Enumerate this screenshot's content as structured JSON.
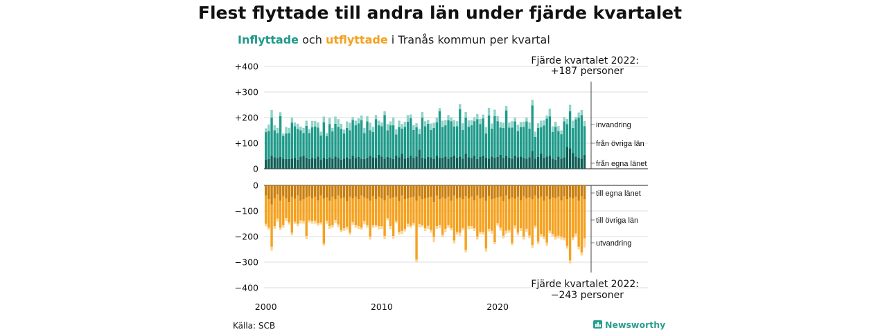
{
  "title": "Flest flyttade till andra län under fjärde kvartalet",
  "subtitle": {
    "part1": "Inflyttade",
    "part2": " och ",
    "part3": "utflyttade",
    "part4": " i Tranås kommun per kvartal"
  },
  "source": "Källa: SCB",
  "brand": "Newsworthy",
  "colors": {
    "in_own": "#0f5e55",
    "in_other": "#1f9a8a",
    "in_immig": "#8fd3c8",
    "out_own": "#c97e0b",
    "out_other": "#f5a11f",
    "out_emig": "#fbd594",
    "teal_text": "#1f9a8a",
    "orange_text": "#f5a11f",
    "grid": "#dddddd"
  },
  "annotations": {
    "in_line1": "Fjärde kvartalet 2022:",
    "in_line2": "+187 personer",
    "out_line1": "Fjärde kvartalet 2022:",
    "out_line2": "−243 personer"
  },
  "chart_data": {
    "type": "bar",
    "stacked": true,
    "x_ticks": [
      "2000",
      "2010",
      "2020"
    ],
    "panels": [
      {
        "name": "Inflyttade",
        "yticks": [
          "+400",
          "+300",
          "+200",
          "+100",
          "0"
        ],
        "ytick_values": [
          400,
          300,
          200,
          100,
          0
        ],
        "ylim": [
          0,
          400
        ],
        "series_labels": [
          "invandring",
          "från övriga län",
          "från egna länet"
        ],
        "series": [
          {
            "name": "från egna länet",
            "values": [
              35,
              38,
              50,
              45,
              42,
              46,
              40,
              38,
              38,
              40,
              42,
              36,
              48,
              50,
              44,
              38,
              42,
              40,
              48,
              35,
              42,
              38,
              45,
              40,
              48,
              42,
              36,
              40,
              45,
              38,
              50,
              42,
              46,
              40,
              38,
              44,
              50,
              45,
              42,
              55,
              48,
              40,
              46,
              42,
              38,
              50,
              45,
              60,
              40,
              44,
              52,
              42,
              48,
              75,
              44,
              40,
              46,
              45,
              38,
              50,
              42,
              44,
              48,
              40,
              46,
              52,
              44,
              48,
              40,
              60,
              45,
              42,
              50,
              38,
              46,
              52,
              44,
              40,
              48,
              44,
              46,
              55,
              42,
              50,
              44,
              40,
              52,
              45,
              48,
              42,
              40,
              45,
              70,
              40,
              46,
              60,
              44,
              48,
              50,
              40,
              36,
              48,
              40,
              45,
              85,
              80,
              62,
              48,
              44,
              40,
              55
            ]
          },
          {
            "name": "från övriga län",
            "values": [
              108,
              110,
              150,
              105,
              98,
              160,
              88,
              100,
              102,
              140,
              124,
              120,
              102,
              90,
              124,
              102,
              120,
              125,
              113,
              95,
              140,
              90,
              130,
              106,
              128,
              122,
              120,
              98,
              115,
              112,
              140,
              128,
              131,
              150,
              102,
              141,
              100,
              99,
              152,
              115,
              118,
              170,
              104,
              128,
              132,
              84,
              118,
              97,
              124,
              140,
              146,
              110,
              114,
              61,
              156,
              126,
              130,
              107,
              122,
              132,
              183,
              119,
              122,
              150,
              140,
              113,
              122,
              185,
              112,
              140,
              119,
              128,
              136,
              156,
              129,
              145,
              94,
              168,
              109,
              162,
              140,
              106,
              118,
              178,
              117,
              121,
              133,
              103,
              115,
              122,
              145,
              112,
              178,
              85,
              114,
              102,
              125,
              148,
              155,
              104,
              128,
              99,
              95,
              140,
              90,
              145,
              98,
              145,
              156,
              170,
              112
            ]
          },
          {
            "name": "invandring",
            "values": [
              15,
              25,
              30,
              20,
              20,
              15,
              10,
              25,
              20,
              20,
              15,
              20,
              15,
              20,
              20,
              15,
              25,
              22,
              20,
              15,
              22,
              12,
              24,
              14,
              28,
              30,
              20,
              15,
              25,
              30,
              12,
              18,
              20,
              18,
              20,
              20,
              30,
              20,
              16,
              18,
              15,
              15,
              25,
              15,
              30,
              20,
              25,
              18,
              20,
              26,
              14,
              18,
              16,
              20,
              22,
              20,
              15,
              25,
              20,
              18,
              12,
              25,
              20,
              20,
              15,
              25,
              20,
              20,
              26,
              22,
              25,
              20,
              16,
              20,
              20,
              15,
              25,
              30,
              20,
              25,
              20,
              22,
              20,
              18,
              20,
              25,
              15,
              24,
              20,
              20,
              15,
              25,
              22,
              20,
              18,
              26,
              20,
              12,
              30,
              22,
              20,
              20,
              15,
              17,
              20,
              25,
              28,
              10,
              20,
              20,
              20
            ]
          }
        ]
      },
      {
        "name": "Utflyttade",
        "yticks": [
          "0",
          "−100",
          "−200",
          "−300",
          "−400"
        ],
        "ytick_values": [
          0,
          -100,
          -200,
          -300,
          -400
        ],
        "ylim": [
          -400,
          0
        ],
        "series_labels": [
          "till egna länet",
          "till övriga län",
          "utvandring"
        ],
        "series": [
          {
            "name": "till egna länet",
            "values": [
              -40,
              -55,
              -75,
              -50,
              -35,
              -60,
              -42,
              -50,
              -65,
              -45,
              -52,
              -40,
              -60,
              -55,
              -48,
              -42,
              -50,
              -45,
              -58,
              -40,
              -52,
              -48,
              -60,
              -45,
              -55,
              -40,
              -50,
              -48,
              -62,
              -45,
              -50,
              -45,
              -55,
              -40,
              -48,
              -52,
              -60,
              -42,
              -55,
              -45,
              -50,
              -58,
              -40,
              -52,
              -48,
              -45,
              -62,
              -40,
              -55,
              -50,
              -48,
              -45,
              -60,
              -42,
              -55,
              -50,
              -48,
              -45,
              -65,
              -40,
              -55,
              -48,
              -52,
              -45,
              -60,
              -40,
              -52,
              -48,
              -55,
              -42,
              -50,
              -45,
              -58,
              -40,
              -52,
              -48,
              -60,
              -42,
              -55,
              -50,
              -48,
              -45,
              -62,
              -40,
              -55,
              -48,
              -52,
              -45,
              -58,
              -42,
              -50,
              -48,
              -55,
              -40,
              -52,
              -45,
              -60,
              -42,
              -55,
              -48,
              -50,
              -45,
              -58,
              -42,
              -55,
              -48,
              -52,
              -45,
              -60,
              -42,
              -55
            ]
          },
          {
            "name": "till övriga län",
            "values": [
              -110,
              -110,
              -165,
              -110,
              -95,
              -105,
              -113,
              -78,
              -80,
              -140,
              -90,
              -110,
              -77,
              -85,
              -150,
              -95,
              -90,
              -93,
              -90,
              -105,
              -175,
              -90,
              -100,
              -110,
              -80,
              -113,
              -125,
              -120,
              -100,
              -140,
              -93,
              -110,
              -105,
              -125,
              -92,
              -103,
              -140,
              -113,
              -100,
              -115,
              -110,
              -140,
              -88,
              -108,
              -150,
              -95,
              -120,
              -138,
              -115,
              -100,
              -110,
              -102,
              -230,
              -110,
              -100,
              -118,
              -110,
              -130,
              -137,
              -120,
              -100,
              -145,
              -118,
              -110,
              -108,
              -175,
              -130,
              -137,
              -112,
              -210,
              -110,
              -115,
              -110,
              -160,
              -130,
              -135,
              -187,
              -128,
              -122,
              -172,
              -100,
              -120,
              -135,
              -137,
              -120,
              -178,
              -105,
              -140,
              -110,
              -158,
              -120,
              -148,
              -178,
              -118,
              -168,
              -145,
              -140,
              -182,
              -122,
              -142,
              -150,
              -152,
              -142,
              -163,
              -182,
              -245,
              -152,
              -143,
              -180,
              -220,
              -152
            ]
          },
          {
            "name": "utvandring",
            "values": [
              -10,
              -8,
              -15,
              -10,
              -12,
              -10,
              -10,
              -12,
              -8,
              -10,
              -8,
              -10,
              -12,
              -10,
              -12,
              -8,
              -10,
              -12,
              -10,
              -8,
              -8,
              -12,
              -10,
              -10,
              -12,
              -10,
              -8,
              -10,
              -10,
              -8,
              -12,
              -10,
              -10,
              -8,
              -12,
              -10,
              -12,
              -10,
              -8,
              -12,
              -10,
              -12,
              -8,
              -12,
              -10,
              -8,
              -10,
              -12,
              -10,
              -12,
              -8,
              -10,
              -10,
              -12,
              -8,
              -10,
              -12,
              -10,
              -20,
              -10,
              -12,
              -10,
              -12,
              -10,
              -8,
              -12,
              -10,
              -12,
              -8,
              -10,
              -12,
              -10,
              -10,
              -12,
              -8,
              -10,
              -12,
              -10,
              -12,
              -8,
              -10,
              -12,
              -10,
              -12,
              -10,
              -8,
              -12,
              -10,
              -10,
              -12,
              -12,
              -10,
              -12,
              -10,
              -10,
              -12,
              -10,
              -12,
              -10,
              -10,
              -12,
              -10,
              -12,
              -10,
              -10,
              -12,
              -10,
              -12,
              -10,
              -12,
              -36
            ]
          }
        ]
      }
    ]
  }
}
